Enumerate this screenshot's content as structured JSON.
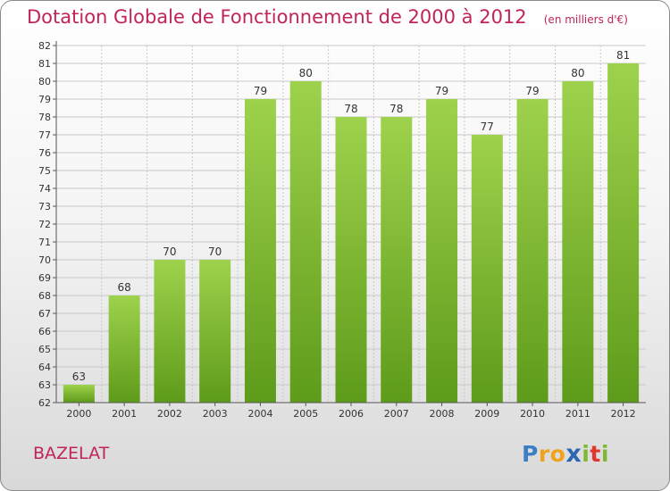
{
  "header": {
    "title": "Dotation Globale de Fonctionnement de 2000 à 2012",
    "unit": "(en milliers d'€)"
  },
  "commune": "BAZELAT",
  "brand": {
    "letters": [
      "P",
      "r",
      "o",
      "x",
      "i",
      "t",
      "i"
    ]
  },
  "colors": {
    "title": "#c0245a",
    "bar_top": "#9ed24c",
    "bar_bottom": "#5e9b1a",
    "grid": "#c8c8c8"
  },
  "chart_data": {
    "type": "bar",
    "title": "Dotation Globale de Fonctionnement de 2000 à 2012",
    "subtitle": "(en milliers d'€)",
    "xlabel": "",
    "ylabel": "",
    "categories": [
      "2000",
      "2001",
      "2002",
      "2003",
      "2004",
      "2005",
      "2006",
      "2007",
      "2008",
      "2009",
      "2010",
      "2011",
      "2012"
    ],
    "values": [
      63,
      68,
      70,
      70,
      79,
      80,
      78,
      78,
      79,
      77,
      79,
      80,
      81
    ],
    "ylim": [
      62,
      82
    ],
    "yticks": [
      62,
      63,
      64,
      65,
      66,
      67,
      68,
      69,
      70,
      71,
      72,
      73,
      74,
      75,
      76,
      77,
      78,
      79,
      80,
      81,
      82
    ],
    "grid": true,
    "legend": "none"
  }
}
